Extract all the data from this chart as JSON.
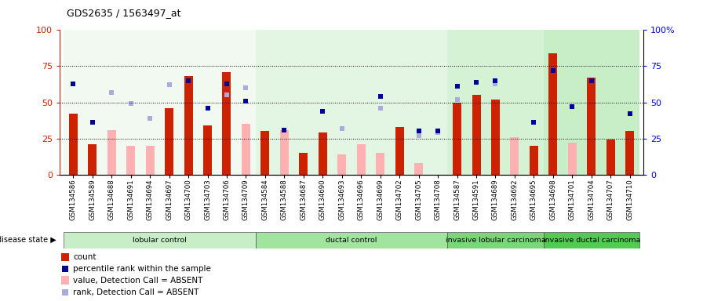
{
  "title": "GDS2635 / 1563497_at",
  "samples": [
    "GSM134586",
    "GSM134589",
    "GSM134688",
    "GSM134691",
    "GSM134694",
    "GSM134697",
    "GSM134700",
    "GSM134703",
    "GSM134706",
    "GSM134709",
    "GSM134584",
    "GSM134588",
    "GSM134687",
    "GSM134690",
    "GSM134693",
    "GSM134696",
    "GSM134699",
    "GSM134702",
    "GSM134705",
    "GSM134708",
    "GSM134587",
    "GSM134591",
    "GSM134689",
    "GSM134692",
    "GSM134695",
    "GSM134698",
    "GSM134701",
    "GSM134704",
    "GSM134707",
    "GSM134710"
  ],
  "count": [
    42,
    21,
    null,
    null,
    null,
    46,
    68,
    34,
    71,
    null,
    30,
    null,
    15,
    29,
    null,
    null,
    null,
    33,
    null,
    null,
    50,
    55,
    52,
    null,
    20,
    84,
    null,
    67,
    24,
    30
  ],
  "percentile_rank": [
    63,
    36,
    null,
    null,
    null,
    null,
    65,
    46,
    63,
    51,
    null,
    31,
    null,
    44,
    null,
    null,
    54,
    null,
    30,
    30,
    61,
    64,
    65,
    null,
    36,
    72,
    47,
    65,
    null,
    42
  ],
  "value_absent": [
    null,
    null,
    31,
    20,
    20,
    null,
    null,
    null,
    null,
    35,
    null,
    31,
    null,
    null,
    14,
    21,
    15,
    null,
    8,
    null,
    null,
    null,
    null,
    26,
    null,
    null,
    22,
    null,
    24,
    null
  ],
  "rank_absent": [
    null,
    null,
    57,
    49,
    39,
    62,
    null,
    null,
    55,
    60,
    null,
    null,
    null,
    null,
    32,
    null,
    46,
    null,
    27,
    29,
    52,
    null,
    63,
    null,
    null,
    null,
    null,
    null,
    null,
    null
  ],
  "groups": [
    {
      "label": "lobular control",
      "start": 0,
      "end": 9,
      "color": "#d8f0d8"
    },
    {
      "label": "ductal control",
      "start": 10,
      "end": 19,
      "color": "#b0e8b0"
    },
    {
      "label": "invasive lobular carcinoma",
      "start": 20,
      "end": 24,
      "color": "#88dc88"
    },
    {
      "label": "invasive ductal carcinoma",
      "start": 25,
      "end": 29,
      "color": "#60d060"
    }
  ],
  "bar_color_count": "#cc2200",
  "bar_color_absent": "#ffb0b0",
  "marker_color_rank": "#000099",
  "marker_color_rank_absent": "#aaaadd"
}
